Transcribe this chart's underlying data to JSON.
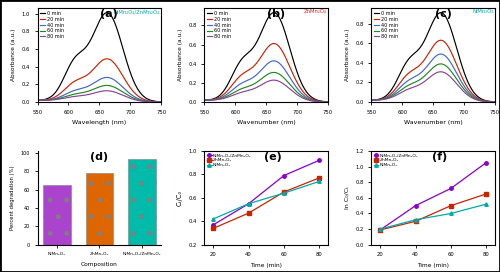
{
  "panel_labels": [
    "(a)",
    "(b)",
    "(c)",
    "(d)",
    "(e)",
    "(f)"
  ],
  "legend_times": [
    "0 min",
    "20 min",
    "40 min",
    "60 min",
    "80 min"
  ],
  "line_colors_spectra": [
    "black",
    "#cc2200",
    "#4466cc",
    "#228822",
    "#884499"
  ],
  "title_a": "NiMn₂O₄/ZnMn₂O₄",
  "title_b": "ZnMn₂O₄",
  "title_c": "NiMn₂O₄",
  "title_a_color": "#00aaaa",
  "title_b_color": "#dd2222",
  "title_c_color": "#00aaaa",
  "bar_categories": [
    "NiMn₂O₄",
    "ZnMn₂O₄",
    "NiMn₂O₄/ZnMn₂O₄"
  ],
  "bar_values": [
    65,
    78,
    93
  ],
  "bar_color_a": [
    "#8800cc",
    "#cc4400",
    "#00bbaa"
  ],
  "bar_hatch": [
    ".",
    ".",
    "."
  ],
  "ylabel_d": "Percent degradation (%)",
  "xlabel_d": "Composition",
  "ylabel_e": "Cₜ/C₀",
  "xlabel_e": "Time (min)",
  "ylabel_f": "ln C₀/Cₜ",
  "xlabel_f": "Time (min)",
  "legend_kin": [
    "NiMn₂O₄/ZnMn₂O₄",
    "ZnMn₂O₄",
    "NiMn₂O₄"
  ],
  "legend_kin_colors": [
    "#8800cc",
    "#cc2200",
    "#00aaaa"
  ],
  "times_kin": [
    20,
    40,
    60,
    80
  ],
  "ct_c0_nimn_znmn": [
    0.37,
    0.55,
    0.79,
    0.92
  ],
  "ct_c0_znmn": [
    0.34,
    0.47,
    0.65,
    0.77
  ],
  "ct_c0_nimn": [
    0.42,
    0.55,
    0.64,
    0.74
  ],
  "ln_nimn_znmn": [
    0.19,
    0.5,
    0.72,
    1.05
  ],
  "ln_znmn": [
    0.19,
    0.3,
    0.5,
    0.65
  ],
  "ln_nimn": [
    0.2,
    0.32,
    0.4,
    0.52
  ],
  "background_color": "white"
}
